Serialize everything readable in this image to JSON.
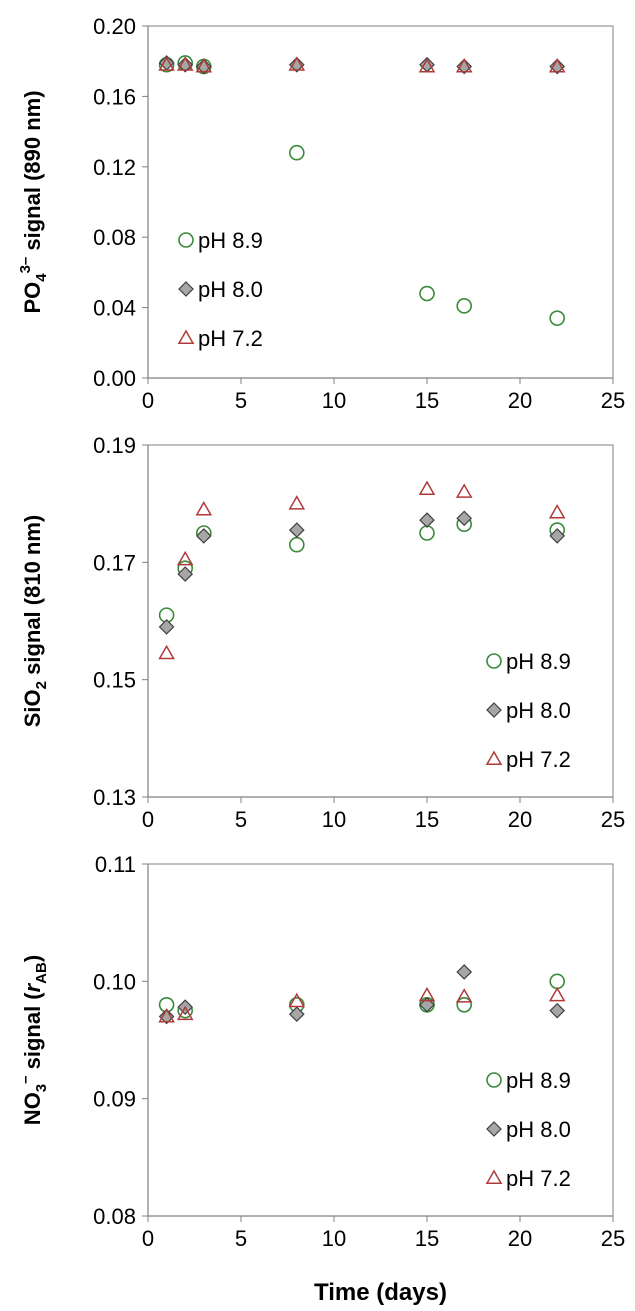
{
  "colors": {
    "ph89": "#3a8a3a",
    "ph80_fill": "#a6a6a6",
    "ph80_stroke": "#404040",
    "ph72": "#b03a3a"
  },
  "chart_data": [
    {
      "type": "scatter",
      "ylabel_parts": {
        "base": "PO",
        "sub": "4",
        "sup": "3–",
        "rest": " signal (890 nm)"
      },
      "xlim": [
        0,
        25
      ],
      "ylim": [
        0.0,
        0.2
      ],
      "xticks": [
        "0",
        "5",
        "10",
        "15",
        "20",
        "25"
      ],
      "yticks": [
        "0.00",
        "0.04",
        "0.08",
        "0.12",
        "0.16",
        "0.20"
      ],
      "legend_position": "middle-left",
      "series": [
        {
          "name": "pH 8.9",
          "marker": "circle",
          "x": [
            1,
            2,
            3,
            8,
            15,
            17,
            22
          ],
          "y": [
            0.178,
            0.179,
            0.177,
            0.128,
            0.048,
            0.041,
            0.034
          ]
        },
        {
          "name": "pH 8.0",
          "marker": "diamond",
          "x": [
            1,
            2,
            3,
            8,
            15,
            17,
            22
          ],
          "y": [
            0.179,
            0.178,
            0.177,
            0.178,
            0.178,
            0.177,
            0.177
          ]
        },
        {
          "name": "pH 7.2",
          "marker": "triangle",
          "x": [
            1,
            2,
            3,
            8,
            15,
            17,
            22
          ],
          "y": [
            0.178,
            0.178,
            0.177,
            0.178,
            0.177,
            0.177,
            0.177
          ]
        }
      ]
    },
    {
      "type": "scatter",
      "ylabel_parts": {
        "base": "SiO",
        "sub": "2",
        "sup": "",
        "rest": " signal (810 nm)"
      },
      "xlim": [
        0,
        25
      ],
      "ylim": [
        0.13,
        0.19
      ],
      "xticks": [
        "0",
        "5",
        "10",
        "15",
        "20",
        "25"
      ],
      "yticks": [
        "0.13",
        "0.15",
        "0.17",
        "0.19"
      ],
      "legend_position": "bottom-right",
      "series": [
        {
          "name": "pH 8.9",
          "marker": "circle",
          "x": [
            1,
            2,
            3,
            8,
            15,
            17,
            22
          ],
          "y": [
            0.161,
            0.169,
            0.175,
            0.173,
            0.175,
            0.1765,
            0.1755
          ]
        },
        {
          "name": "pH 8.0",
          "marker": "diamond",
          "x": [
            1,
            2,
            3,
            8,
            15,
            17,
            22
          ],
          "y": [
            0.159,
            0.168,
            0.1745,
            0.1755,
            0.1772,
            0.1775,
            0.1745
          ]
        },
        {
          "name": "pH 7.2",
          "marker": "triangle",
          "x": [
            1,
            2,
            3,
            8,
            15,
            17,
            22
          ],
          "y": [
            0.1545,
            0.1705,
            0.179,
            0.18,
            0.1825,
            0.182,
            0.1785
          ]
        }
      ]
    },
    {
      "type": "scatter",
      "ylabel_parts": {
        "base": "NO",
        "sub": "3",
        "sup": "–",
        "rest": " signal (",
        "italic": "r",
        "italic_sub": "AB",
        "close": ")"
      },
      "xlabel": "Time (days)",
      "xlim": [
        0,
        25
      ],
      "ylim": [
        0.08,
        0.11
      ],
      "xticks": [
        "0",
        "5",
        "10",
        "15",
        "20",
        "25"
      ],
      "yticks": [
        "0.08",
        "0.09",
        "0.10",
        "0.11"
      ],
      "legend_position": "bottom-right",
      "series": [
        {
          "name": "pH 8.9",
          "marker": "circle",
          "x": [
            1,
            2,
            8,
            15,
            17,
            22
          ],
          "y": [
            0.098,
            0.0975,
            0.098,
            0.098,
            0.098,
            0.1
          ]
        },
        {
          "name": "pH 8.0",
          "marker": "diamond",
          "x": [
            1,
            2,
            8,
            15,
            17,
            22
          ],
          "y": [
            0.097,
            0.0978,
            0.0972,
            0.098,
            0.1008,
            0.0975
          ]
        },
        {
          "name": "pH 7.2",
          "marker": "triangle",
          "x": [
            1,
            2,
            8,
            15,
            17,
            22
          ],
          "y": [
            0.097,
            0.0972,
            0.0983,
            0.0988,
            0.0987,
            0.0988
          ]
        }
      ]
    }
  ]
}
